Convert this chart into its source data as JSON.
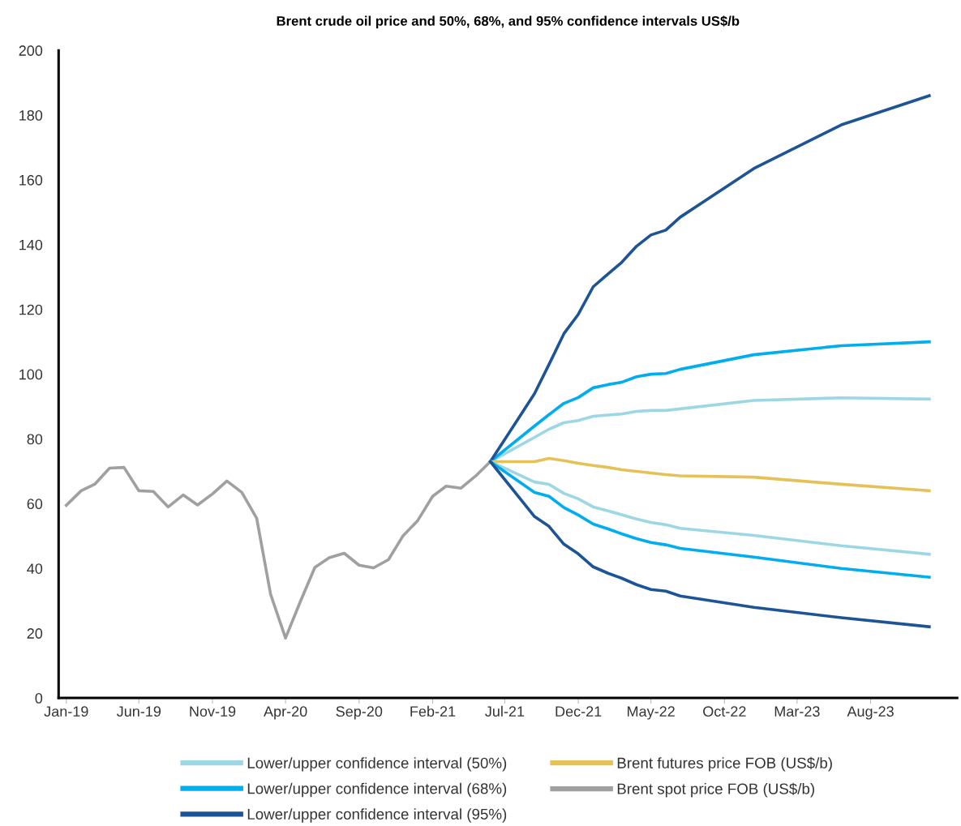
{
  "chart_data": {
    "type": "line",
    "title": "Brent crude oil price and 50%, 68%, and 95% confidence intervals US$/b",
    "xlim": [
      "2018-12-16",
      "2024-01-28"
    ],
    "ylim": [
      0,
      200
    ],
    "yticks": [
      0,
      20,
      40,
      60,
      80,
      100,
      120,
      140,
      160,
      180,
      200
    ],
    "xticks": [
      {
        "value": "2019-01",
        "label": "Jan-19"
      },
      {
        "value": "2019-06",
        "label": "Jun-19"
      },
      {
        "value": "2019-11",
        "label": "Nov-19"
      },
      {
        "value": "2020-04",
        "label": "Apr-20"
      },
      {
        "value": "2020-09",
        "label": "Sep-20"
      },
      {
        "value": "2021-02",
        "label": "Feb-21"
      },
      {
        "value": "2021-07",
        "label": "Jul-21"
      },
      {
        "value": "2021-12",
        "label": "Dec-21"
      },
      {
        "value": "2022-05",
        "label": "May-22"
      },
      {
        "value": "2022-10",
        "label": "Oct-22"
      },
      {
        "value": "2023-03",
        "label": "Mar-23"
      },
      {
        "value": "2023-08",
        "label": "Aug-23"
      }
    ],
    "grid": false,
    "legend": "bottom",
    "marker": "none",
    "line_style": "solid",
    "x": [
      "2021-06",
      "2021-09",
      "2021-10",
      "2021-11",
      "2021-12",
      "2022-01",
      "2022-02",
      "2022-03",
      "2022-04",
      "2022-05",
      "2022-06",
      "2022-07",
      "2022-12",
      "2023-06",
      "2023-12"
    ],
    "series": [
      {
        "name": "Lower/upper confidence interval (50%)",
        "color": "#9dd7e4",
        "values": [
          73,
          80.5,
          83,
          85,
          85.7,
          87,
          87.4,
          87.7,
          88.5,
          88.8,
          88.8,
          89.3,
          91.9,
          92.7,
          92.3
        ]
      },
      {
        "name": "Lower/upper confidence interval (68%)",
        "color": "#00adef",
        "values": [
          73,
          84,
          87.5,
          91,
          92.8,
          95.8,
          96.8,
          97.5,
          99.2,
          100,
          100.2,
          101.5,
          106,
          108.8,
          110
        ]
      },
      {
        "name": "Lower/upper confidence interval (95%)",
        "color": "#1d5496",
        "values": [
          73,
          94,
          103,
          112.5,
          118.5,
          127,
          131,
          134.5,
          139.5,
          143,
          144.5,
          148.5,
          163.5,
          177,
          186
        ]
      },
      {
        "name": "Brent futures price FOB (US$/b)",
        "color": "#e6c158",
        "values": [
          73,
          73,
          74,
          73.3,
          72.5,
          71.8,
          71.2,
          70.5,
          70,
          69.5,
          69,
          68.6,
          68.2,
          66,
          64
        ]
      },
      {
        "name": "Brent spot price FOB (US$/b)",
        "color": "#a0a0a0",
        "x": [
          "2019-01",
          "2019-02",
          "2019-03",
          "2019-04",
          "2019-05",
          "2019-06",
          "2019-07",
          "2019-08",
          "2019-09",
          "2019-10",
          "2019-11",
          "2019-12",
          "2020-01",
          "2020-02",
          "2020-03",
          "2020-04",
          "2020-05",
          "2020-06",
          "2020-07",
          "2020-08",
          "2020-09",
          "2020-10",
          "2020-11",
          "2020-12",
          "2021-01",
          "2021-02",
          "2021-03",
          "2021-04",
          "2021-05",
          "2021-06"
        ],
        "values": [
          59.5,
          64,
          66,
          71,
          71.2,
          64,
          63.8,
          59,
          62.7,
          59.6,
          63,
          67,
          63.5,
          55.5,
          32,
          18.5,
          29.5,
          40.3,
          43.3,
          44.7,
          41,
          40.2,
          42.7,
          50,
          54.8,
          62.3,
          65.4,
          64.8,
          68.5,
          73
        ]
      },
      {
        "color": "#9dd7e4",
        "values": [
          73,
          66.7,
          66,
          63.2,
          61.5,
          59,
          57.8,
          56.6,
          55.3,
          54.2,
          53.5,
          52.4,
          50.2,
          47,
          44.4
        ]
      },
      {
        "color": "#00adef",
        "values": [
          73,
          63.5,
          62.3,
          58.8,
          56.5,
          53.7,
          52.2,
          50.7,
          49.2,
          48,
          47.3,
          46.2,
          43.5,
          40,
          37.3
        ]
      },
      {
        "color": "#1d5496",
        "values": [
          73,
          56,
          53,
          47.5,
          44.5,
          40.5,
          38.5,
          37,
          35,
          33.5,
          33,
          31.5,
          28,
          24.8,
          22
        ]
      }
    ]
  }
}
